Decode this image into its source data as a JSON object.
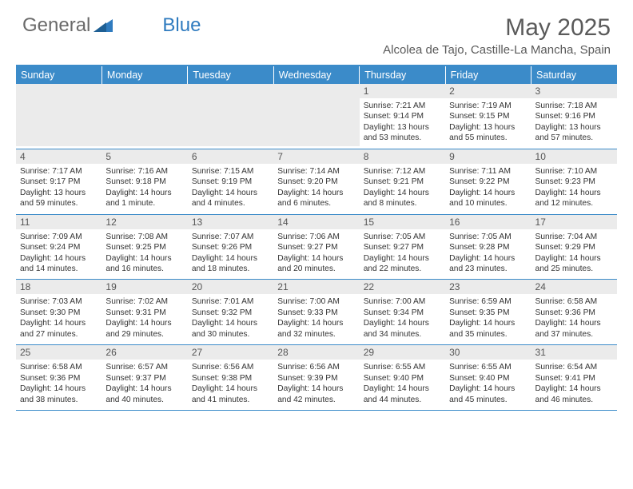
{
  "brand": {
    "part1": "General",
    "part2": "Blue"
  },
  "title": "May 2025",
  "location": "Alcolea de Tajo, Castille-La Mancha, Spain",
  "colors": {
    "header_bg": "#3b8bc9",
    "header_text": "#ffffff",
    "daynum_bg": "#ebebeb",
    "rule": "#3b8bc9",
    "logo_gray": "#6a6a6a",
    "logo_blue": "#2f7bbf",
    "body_text": "#333333"
  },
  "weekdays": [
    "Sunday",
    "Monday",
    "Tuesday",
    "Wednesday",
    "Thursday",
    "Friday",
    "Saturday"
  ],
  "weeks": [
    [
      {
        "n": "",
        "sr": "",
        "ss": "",
        "dl": ""
      },
      {
        "n": "",
        "sr": "",
        "ss": "",
        "dl": ""
      },
      {
        "n": "",
        "sr": "",
        "ss": "",
        "dl": ""
      },
      {
        "n": "",
        "sr": "",
        "ss": "",
        "dl": ""
      },
      {
        "n": "1",
        "sr": "Sunrise: 7:21 AM",
        "ss": "Sunset: 9:14 PM",
        "dl": "Daylight: 13 hours and 53 minutes."
      },
      {
        "n": "2",
        "sr": "Sunrise: 7:19 AM",
        "ss": "Sunset: 9:15 PM",
        "dl": "Daylight: 13 hours and 55 minutes."
      },
      {
        "n": "3",
        "sr": "Sunrise: 7:18 AM",
        "ss": "Sunset: 9:16 PM",
        "dl": "Daylight: 13 hours and 57 minutes."
      }
    ],
    [
      {
        "n": "4",
        "sr": "Sunrise: 7:17 AM",
        "ss": "Sunset: 9:17 PM",
        "dl": "Daylight: 13 hours and 59 minutes."
      },
      {
        "n": "5",
        "sr": "Sunrise: 7:16 AM",
        "ss": "Sunset: 9:18 PM",
        "dl": "Daylight: 14 hours and 1 minute."
      },
      {
        "n": "6",
        "sr": "Sunrise: 7:15 AM",
        "ss": "Sunset: 9:19 PM",
        "dl": "Daylight: 14 hours and 4 minutes."
      },
      {
        "n": "7",
        "sr": "Sunrise: 7:14 AM",
        "ss": "Sunset: 9:20 PM",
        "dl": "Daylight: 14 hours and 6 minutes."
      },
      {
        "n": "8",
        "sr": "Sunrise: 7:12 AM",
        "ss": "Sunset: 9:21 PM",
        "dl": "Daylight: 14 hours and 8 minutes."
      },
      {
        "n": "9",
        "sr": "Sunrise: 7:11 AM",
        "ss": "Sunset: 9:22 PM",
        "dl": "Daylight: 14 hours and 10 minutes."
      },
      {
        "n": "10",
        "sr": "Sunrise: 7:10 AM",
        "ss": "Sunset: 9:23 PM",
        "dl": "Daylight: 14 hours and 12 minutes."
      }
    ],
    [
      {
        "n": "11",
        "sr": "Sunrise: 7:09 AM",
        "ss": "Sunset: 9:24 PM",
        "dl": "Daylight: 14 hours and 14 minutes."
      },
      {
        "n": "12",
        "sr": "Sunrise: 7:08 AM",
        "ss": "Sunset: 9:25 PM",
        "dl": "Daylight: 14 hours and 16 minutes."
      },
      {
        "n": "13",
        "sr": "Sunrise: 7:07 AM",
        "ss": "Sunset: 9:26 PM",
        "dl": "Daylight: 14 hours and 18 minutes."
      },
      {
        "n": "14",
        "sr": "Sunrise: 7:06 AM",
        "ss": "Sunset: 9:27 PM",
        "dl": "Daylight: 14 hours and 20 minutes."
      },
      {
        "n": "15",
        "sr": "Sunrise: 7:05 AM",
        "ss": "Sunset: 9:27 PM",
        "dl": "Daylight: 14 hours and 22 minutes."
      },
      {
        "n": "16",
        "sr": "Sunrise: 7:05 AM",
        "ss": "Sunset: 9:28 PM",
        "dl": "Daylight: 14 hours and 23 minutes."
      },
      {
        "n": "17",
        "sr": "Sunrise: 7:04 AM",
        "ss": "Sunset: 9:29 PM",
        "dl": "Daylight: 14 hours and 25 minutes."
      }
    ],
    [
      {
        "n": "18",
        "sr": "Sunrise: 7:03 AM",
        "ss": "Sunset: 9:30 PM",
        "dl": "Daylight: 14 hours and 27 minutes."
      },
      {
        "n": "19",
        "sr": "Sunrise: 7:02 AM",
        "ss": "Sunset: 9:31 PM",
        "dl": "Daylight: 14 hours and 29 minutes."
      },
      {
        "n": "20",
        "sr": "Sunrise: 7:01 AM",
        "ss": "Sunset: 9:32 PM",
        "dl": "Daylight: 14 hours and 30 minutes."
      },
      {
        "n": "21",
        "sr": "Sunrise: 7:00 AM",
        "ss": "Sunset: 9:33 PM",
        "dl": "Daylight: 14 hours and 32 minutes."
      },
      {
        "n": "22",
        "sr": "Sunrise: 7:00 AM",
        "ss": "Sunset: 9:34 PM",
        "dl": "Daylight: 14 hours and 34 minutes."
      },
      {
        "n": "23",
        "sr": "Sunrise: 6:59 AM",
        "ss": "Sunset: 9:35 PM",
        "dl": "Daylight: 14 hours and 35 minutes."
      },
      {
        "n": "24",
        "sr": "Sunrise: 6:58 AM",
        "ss": "Sunset: 9:36 PM",
        "dl": "Daylight: 14 hours and 37 minutes."
      }
    ],
    [
      {
        "n": "25",
        "sr": "Sunrise: 6:58 AM",
        "ss": "Sunset: 9:36 PM",
        "dl": "Daylight: 14 hours and 38 minutes."
      },
      {
        "n": "26",
        "sr": "Sunrise: 6:57 AM",
        "ss": "Sunset: 9:37 PM",
        "dl": "Daylight: 14 hours and 40 minutes."
      },
      {
        "n": "27",
        "sr": "Sunrise: 6:56 AM",
        "ss": "Sunset: 9:38 PM",
        "dl": "Daylight: 14 hours and 41 minutes."
      },
      {
        "n": "28",
        "sr": "Sunrise: 6:56 AM",
        "ss": "Sunset: 9:39 PM",
        "dl": "Daylight: 14 hours and 42 minutes."
      },
      {
        "n": "29",
        "sr": "Sunrise: 6:55 AM",
        "ss": "Sunset: 9:40 PM",
        "dl": "Daylight: 14 hours and 44 minutes."
      },
      {
        "n": "30",
        "sr": "Sunrise: 6:55 AM",
        "ss": "Sunset: 9:40 PM",
        "dl": "Daylight: 14 hours and 45 minutes."
      },
      {
        "n": "31",
        "sr": "Sunrise: 6:54 AM",
        "ss": "Sunset: 9:41 PM",
        "dl": "Daylight: 14 hours and 46 minutes."
      }
    ]
  ]
}
